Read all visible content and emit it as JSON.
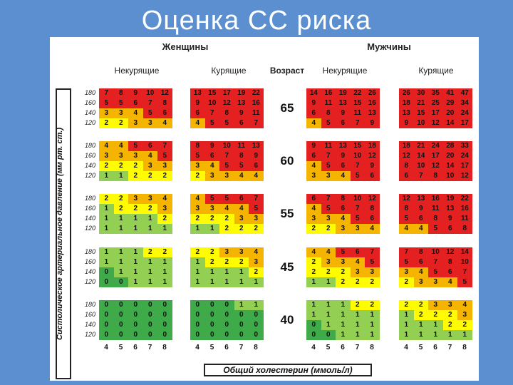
{
  "title": "Оценка СС риска",
  "women_label": "Женщины",
  "men_label": "Мужчины",
  "age_header": "Возраст",
  "nonsmoking_label": "Некурящие",
  "smoking_label": "Курящие",
  "y_axis_label": "Систолическое артериальное давление (мм рт. ст.)",
  "x_axis_label": "Общий холестерин (ммоль/л)",
  "bp_levels": [
    "180",
    "160",
    "140",
    "120"
  ],
  "cholesterol_levels": [
    "4",
    "5",
    "6",
    "7",
    "8"
  ],
  "colors": {
    "green": "#3faa4a",
    "lightgreen": "#92cf53",
    "yellow": "#fffb00",
    "orange": "#f4b400",
    "red": "#e52020"
  },
  "blocks": [
    {
      "age": "65",
      "women_nonsmoking": [
        [
          "7",
          "8",
          "9",
          "10",
          "12"
        ],
        [
          "5",
          "5",
          "6",
          "7",
          "8"
        ],
        [
          "3",
          "3",
          "4",
          "5",
          "6"
        ],
        [
          "2",
          "2",
          "3",
          "3",
          "4"
        ]
      ],
      "women_smoking": [
        [
          "13",
          "15",
          "17",
          "19",
          "22"
        ],
        [
          "9",
          "10",
          "12",
          "13",
          "16"
        ],
        [
          "6",
          "7",
          "8",
          "9",
          "11"
        ],
        [
          "4",
          "5",
          "5",
          "6",
          "7"
        ]
      ],
      "men_nonsmoking": [
        [
          "14",
          "16",
          "19",
          "22",
          "26"
        ],
        [
          "9",
          "11",
          "13",
          "15",
          "16"
        ],
        [
          "6",
          "8",
          "9",
          "11",
          "13"
        ],
        [
          "4",
          "5",
          "6",
          "7",
          "9"
        ]
      ],
      "men_smoking": [
        [
          "26",
          "30",
          "35",
          "41",
          "47"
        ],
        [
          "18",
          "21",
          "25",
          "29",
          "34"
        ],
        [
          "13",
          "15",
          "17",
          "20",
          "24"
        ],
        [
          "9",
          "10",
          "12",
          "14",
          "17"
        ]
      ]
    },
    {
      "age": "60",
      "women_nonsmoking": [
        [
          "4",
          "4",
          "5",
          "6",
          "7"
        ],
        [
          "3",
          "3",
          "3",
          "4",
          "5"
        ],
        [
          "2",
          "2",
          "2",
          "3",
          "3"
        ],
        [
          "1",
          "1",
          "2",
          "2",
          "2"
        ]
      ],
      "women_smoking": [
        [
          "8",
          "9",
          "10",
          "11",
          "13"
        ],
        [
          "5",
          "6",
          "7",
          "8",
          "9"
        ],
        [
          "3",
          "4",
          "5",
          "5",
          "6"
        ],
        [
          "2",
          "3",
          "3",
          "4",
          "4"
        ]
      ],
      "men_nonsmoking": [
        [
          "9",
          "11",
          "13",
          "15",
          "18"
        ],
        [
          "6",
          "7",
          "9",
          "10",
          "12"
        ],
        [
          "4",
          "5",
          "6",
          "7",
          "9"
        ],
        [
          "3",
          "3",
          "4",
          "5",
          "6"
        ]
      ],
      "men_smoking": [
        [
          "18",
          "21",
          "24",
          "28",
          "33"
        ],
        [
          "12",
          "14",
          "17",
          "20",
          "24"
        ],
        [
          "8",
          "10",
          "12",
          "14",
          "17"
        ],
        [
          "6",
          "7",
          "8",
          "10",
          "12"
        ]
      ]
    },
    {
      "age": "55",
      "women_nonsmoking": [
        [
          "2",
          "2",
          "3",
          "3",
          "4"
        ],
        [
          "1",
          "2",
          "2",
          "2",
          "3"
        ],
        [
          "1",
          "1",
          "1",
          "1",
          "2"
        ],
        [
          "1",
          "1",
          "1",
          "1",
          "1"
        ]
      ],
      "women_smoking": [
        [
          "4",
          "5",
          "5",
          "6",
          "7"
        ],
        [
          "3",
          "3",
          "4",
          "4",
          "5"
        ],
        [
          "2",
          "2",
          "2",
          "3",
          "3"
        ],
        [
          "1",
          "1",
          "2",
          "2",
          "2"
        ]
      ],
      "men_nonsmoking": [
        [
          "6",
          "7",
          "8",
          "10",
          "12"
        ],
        [
          "4",
          "5",
          "6",
          "7",
          "8"
        ],
        [
          "3",
          "3",
          "4",
          "5",
          "6"
        ],
        [
          "2",
          "2",
          "3",
          "3",
          "4"
        ]
      ],
      "men_smoking": [
        [
          "12",
          "13",
          "16",
          "19",
          "22"
        ],
        [
          "8",
          "9",
          "11",
          "13",
          "16"
        ],
        [
          "5",
          "6",
          "8",
          "9",
          "11"
        ],
        [
          "4",
          "4",
          "5",
          "6",
          "8"
        ]
      ]
    },
    {
      "age": "45",
      "women_nonsmoking": [
        [
          "1",
          "1",
          "1",
          "2",
          "2"
        ],
        [
          "1",
          "1",
          "1",
          "1",
          "1"
        ],
        [
          "0",
          "1",
          "1",
          "1",
          "1"
        ],
        [
          "0",
          "0",
          "1",
          "1",
          "1"
        ]
      ],
      "women_smoking": [
        [
          "2",
          "2",
          "3",
          "3",
          "4"
        ],
        [
          "1",
          "2",
          "2",
          "2",
          "3"
        ],
        [
          "1",
          "1",
          "1",
          "1",
          "2"
        ],
        [
          "1",
          "1",
          "1",
          "1",
          "1"
        ]
      ],
      "men_nonsmoking": [
        [
          "4",
          "4",
          "5",
          "6",
          "7"
        ],
        [
          "2",
          "3",
          "3",
          "4",
          "5"
        ],
        [
          "2",
          "2",
          "2",
          "3",
          "3"
        ],
        [
          "1",
          "1",
          "2",
          "2",
          "2"
        ]
      ],
      "men_smoking": [
        [
          "7",
          "8",
          "10",
          "12",
          "14"
        ],
        [
          "5",
          "6",
          "7",
          "8",
          "10"
        ],
        [
          "3",
          "4",
          "5",
          "6",
          "7"
        ],
        [
          "2",
          "3",
          "3",
          "4",
          "5"
        ]
      ]
    },
    {
      "age": "40",
      "women_nonsmoking": [
        [
          "0",
          "0",
          "0",
          "0",
          "0"
        ],
        [
          "0",
          "0",
          "0",
          "0",
          "0"
        ],
        [
          "0",
          "0",
          "0",
          "0",
          "0"
        ],
        [
          "0",
          "0",
          "0",
          "0",
          "0"
        ]
      ],
      "women_smoking": [
        [
          "0",
          "0",
          "0",
          "1",
          "1"
        ],
        [
          "0",
          "0",
          "0",
          "0",
          "0"
        ],
        [
          "0",
          "0",
          "0",
          "0",
          "0"
        ],
        [
          "0",
          "0",
          "0",
          "0",
          "0"
        ]
      ],
      "men_nonsmoking": [
        [
          "1",
          "1",
          "1",
          "2",
          "2"
        ],
        [
          "1",
          "1",
          "1",
          "1",
          "1"
        ],
        [
          "0",
          "1",
          "1",
          "1",
          "1"
        ],
        [
          "0",
          "0",
          "1",
          "1",
          "1"
        ]
      ],
      "men_smoking": [
        [
          "2",
          "2",
          "3",
          "3",
          "4"
        ],
        [
          "1",
          "2",
          "2",
          "2",
          "3"
        ],
        [
          "1",
          "1",
          "1",
          "2",
          "2"
        ],
        [
          "1",
          "1",
          "1",
          "1",
          "1"
        ]
      ]
    }
  ]
}
